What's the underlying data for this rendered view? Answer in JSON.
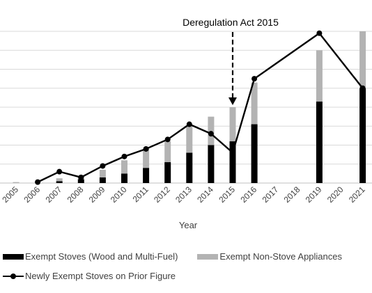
{
  "chart_data": {
    "type": "bar",
    "annotation": "Deregulation Act 2015",
    "annotation_x": "2015",
    "xlabel": "Year",
    "ylabel": "",
    "ylim": [
      0,
      8
    ],
    "grid": true,
    "legend_placement": "bottom",
    "categories": [
      "2005",
      "2006",
      "2007",
      "2008",
      "2009",
      "2010",
      "2011",
      "2012",
      "2013",
      "2014",
      "2015",
      "2016",
      "2017",
      "2018",
      "2019",
      "2020",
      "2021"
    ],
    "series": [
      {
        "name": "Exempt Stoves (Wood and Multi-Fuel)",
        "kind": "bar",
        "color": "#000000",
        "values": [
          0,
          0,
          0.1,
          0.2,
          0.3,
          0.5,
          0.8,
          1.1,
          1.6,
          2.0,
          2.2,
          3.1,
          0,
          0,
          4.3,
          0,
          5.0
        ]
      },
      {
        "name": "Exempt Non-Stove Appliances",
        "kind": "bar",
        "color": "#b3b3b3",
        "values": [
          0.05,
          0,
          0.15,
          0.15,
          0.4,
          0.7,
          1.0,
          1.1,
          1.4,
          1.5,
          1.8,
          2.2,
          0,
          0,
          2.7,
          0,
          3.0
        ]
      },
      {
        "name": "Newly Exempt Stoves on Prior Figure",
        "kind": "line",
        "color": "#000000",
        "points": [
          [
            "2006",
            0.05
          ],
          [
            "2007",
            0.6
          ],
          [
            "2008",
            0.3
          ],
          [
            "2009",
            0.9
          ],
          [
            "2010",
            1.4
          ],
          [
            "2011",
            1.8
          ],
          [
            "2012",
            2.3
          ],
          [
            "2013",
            3.1
          ],
          [
            "2014",
            2.6
          ],
          [
            "2015",
            1.6
          ],
          [
            "2016",
            5.5
          ],
          [
            "2019",
            7.9
          ],
          [
            "2021",
            5.0
          ]
        ]
      }
    ]
  }
}
